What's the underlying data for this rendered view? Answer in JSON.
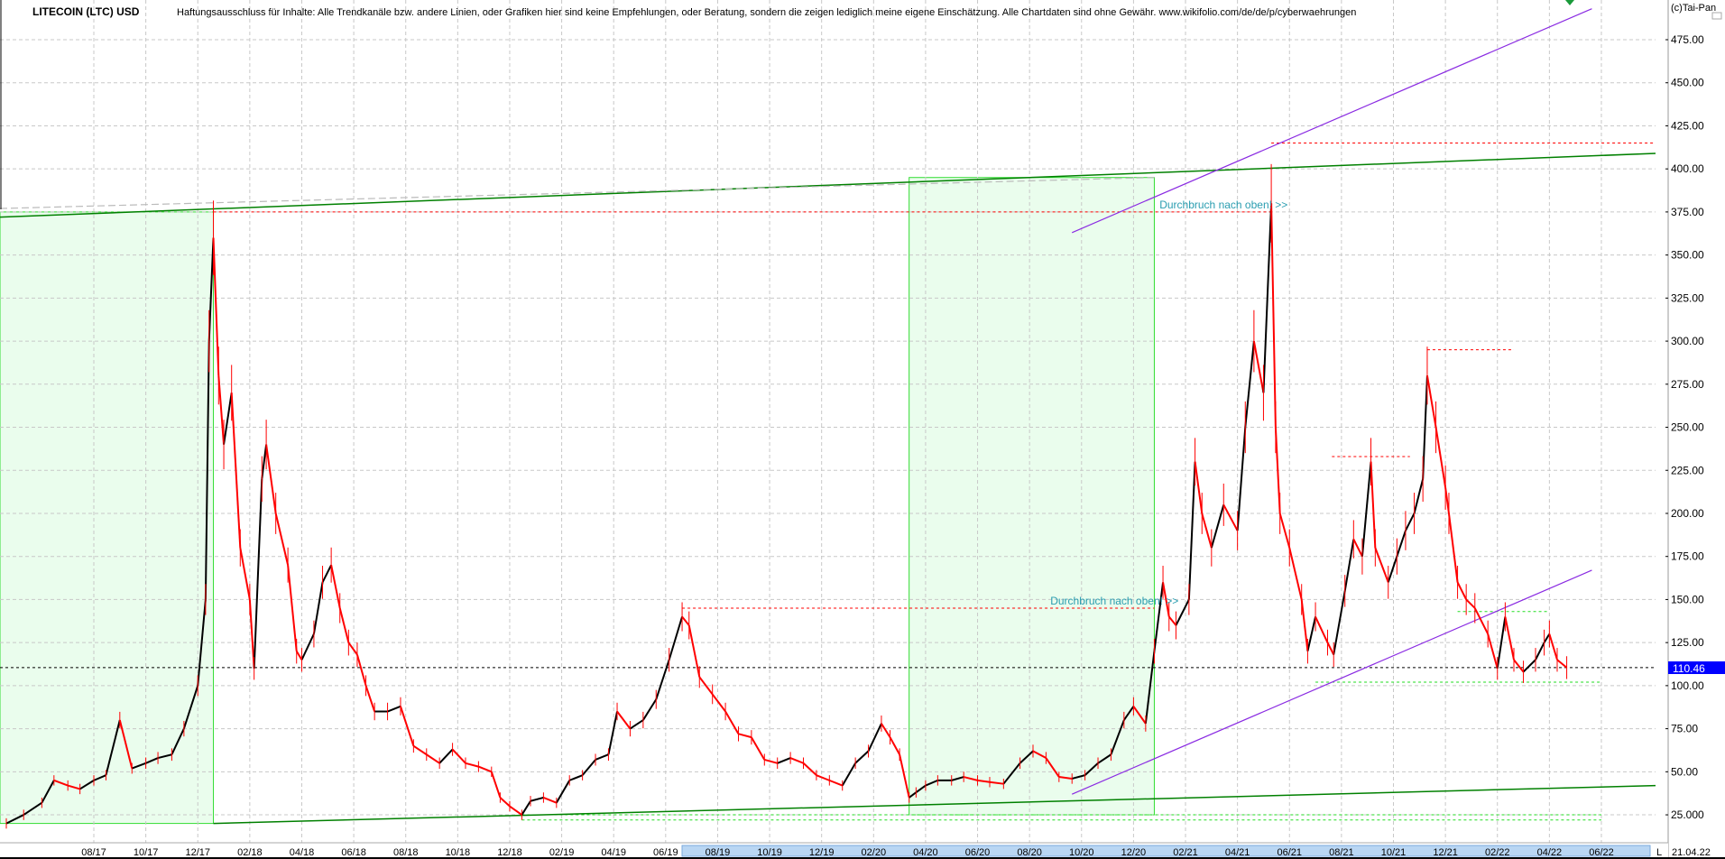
{
  "header": {
    "title": "LITECOIN (LTC) USD",
    "disclaimer": "Haftungsausschluss für Inhalte: Alle Trendkanäle bzw. andere Linien, oder Grafiken hier sind keine Empfehlungen, oder Beratung, sondern die zeigen lediglich meine eigene Einschätzung. Alle Chartdaten sind ohne Gewähr.  www.wikifolio.com/de/de/p/cyberwaehrungen",
    "copyright": "(c)Tai-Pan"
  },
  "footer": {
    "scroll_marker": "L",
    "last_date": "21.04.22"
  },
  "colors": {
    "up": "#000000",
    "down": "#ff0000",
    "price_badge": "#0000ff",
    "zone_fill": "#eafded",
    "zone_border": "#33dd33",
    "trend_green": "#008000",
    "channel_purple": "#8a2be2",
    "annotation": "#2a9db0",
    "scrollbar": "#b9d6f3"
  },
  "chart_data": {
    "type": "line",
    "title": "LITECOIN (LTC) USD",
    "xlabel": "",
    "ylabel": "",
    "ylim": [
      0,
      490
    ],
    "grid": true,
    "current_price": {
      "label": "110.46",
      "value": 110.46
    },
    "x_ticks": [
      "08/17",
      "10/17",
      "12/17",
      "02/18",
      "04/18",
      "06/18",
      "08/18",
      "10/18",
      "12/18",
      "02/19",
      "04/19",
      "06/19",
      "08/19",
      "10/19",
      "12/19",
      "02/20",
      "04/20",
      "06/20",
      "08/20",
      "10/20",
      "12/20",
      "02/21",
      "04/21",
      "06/21",
      "08/21",
      "10/21",
      "12/21",
      "02/22",
      "04/22",
      "06/22"
    ],
    "y_ticks": [
      {
        "value": 475,
        "label": "475.00"
      },
      {
        "value": 450,
        "label": "450.00"
      },
      {
        "value": 425,
        "label": "425.00"
      },
      {
        "value": 400,
        "label": "400.00"
      },
      {
        "value": 375,
        "label": "375.00"
      },
      {
        "value": 350,
        "label": "350.00"
      },
      {
        "value": 325,
        "label": "325.00"
      },
      {
        "value": 300,
        "label": "300.00"
      },
      {
        "value": 275,
        "label": "275.00"
      },
      {
        "value": 250,
        "label": "250.00"
      },
      {
        "value": 225,
        "label": "225.00"
      },
      {
        "value": 200,
        "label": "200.00"
      },
      {
        "value": 175,
        "label": "175.00"
      },
      {
        "value": 150,
        "label": "150.00"
      },
      {
        "value": 125,
        "label": "125.00"
      },
      {
        "value": 100,
        "label": "100.00"
      },
      {
        "value": 75,
        "label": "75.00"
      },
      {
        "value": 50,
        "label": "50.00"
      },
      {
        "value": 25,
        "label": "25.000"
      }
    ],
    "series": [
      {
        "points": [
          [
            "2017-04-20",
            20
          ],
          [
            "2017-05-10",
            25
          ],
          [
            "2017-06-01",
            32
          ],
          [
            "2017-06-15",
            45
          ],
          [
            "2017-07-01",
            42
          ],
          [
            "2017-07-15",
            40
          ],
          [
            "2017-08-01",
            45
          ],
          [
            "2017-08-15",
            48
          ],
          [
            "2017-09-01",
            80
          ],
          [
            "2017-09-15",
            52
          ],
          [
            "2017-10-01",
            55
          ],
          [
            "2017-10-15",
            58
          ],
          [
            "2017-11-01",
            60
          ],
          [
            "2017-11-15",
            75
          ],
          [
            "2017-12-01",
            100
          ],
          [
            "2017-12-10",
            150
          ],
          [
            "2017-12-14",
            300
          ],
          [
            "2017-12-19",
            360
          ],
          [
            "2017-12-25",
            280
          ],
          [
            "2018-01-01",
            240
          ],
          [
            "2018-01-10",
            270
          ],
          [
            "2018-01-20",
            180
          ],
          [
            "2018-02-01",
            150
          ],
          [
            "2018-02-06",
            110
          ],
          [
            "2018-02-15",
            220
          ],
          [
            "2018-02-20",
            240
          ],
          [
            "2018-03-01",
            200
          ],
          [
            "2018-03-15",
            170
          ],
          [
            "2018-03-25",
            120
          ],
          [
            "2018-04-01",
            115
          ],
          [
            "2018-04-15",
            130
          ],
          [
            "2018-04-25",
            160
          ],
          [
            "2018-05-05",
            170
          ],
          [
            "2018-05-15",
            145
          ],
          [
            "2018-05-25",
            125
          ],
          [
            "2018-06-05",
            118
          ],
          [
            "2018-06-15",
            100
          ],
          [
            "2018-06-25",
            85
          ],
          [
            "2018-07-10",
            85
          ],
          [
            "2018-07-25",
            88
          ],
          [
            "2018-08-10",
            65
          ],
          [
            "2018-08-25",
            60
          ],
          [
            "2018-09-10",
            55
          ],
          [
            "2018-09-25",
            63
          ],
          [
            "2018-10-10",
            55
          ],
          [
            "2018-10-25",
            53
          ],
          [
            "2018-11-10",
            50
          ],
          [
            "2018-11-20",
            35
          ],
          [
            "2018-12-01",
            30
          ],
          [
            "2018-12-15",
            25
          ],
          [
            "2018-12-25",
            33
          ],
          [
            "2019-01-10",
            35
          ],
          [
            "2019-01-25",
            32
          ],
          [
            "2019-02-10",
            45
          ],
          [
            "2019-02-25",
            48
          ],
          [
            "2019-03-10",
            57
          ],
          [
            "2019-03-25",
            60
          ],
          [
            "2019-04-05",
            85
          ],
          [
            "2019-04-20",
            75
          ],
          [
            "2019-05-05",
            80
          ],
          [
            "2019-05-20",
            92
          ],
          [
            "2019-06-05",
            115
          ],
          [
            "2019-06-20",
            140
          ],
          [
            "2019-06-28",
            135
          ],
          [
            "2019-07-10",
            105
          ],
          [
            "2019-07-25",
            95
          ],
          [
            "2019-08-10",
            85
          ],
          [
            "2019-08-25",
            72
          ],
          [
            "2019-09-10",
            70
          ],
          [
            "2019-09-25",
            57
          ],
          [
            "2019-10-10",
            55
          ],
          [
            "2019-10-25",
            58
          ],
          [
            "2019-11-10",
            55
          ],
          [
            "2019-11-25",
            48
          ],
          [
            "2019-12-10",
            45
          ],
          [
            "2019-12-25",
            42
          ],
          [
            "2020-01-10",
            55
          ],
          [
            "2020-01-25",
            62
          ],
          [
            "2020-02-10",
            78
          ],
          [
            "2020-02-20",
            70
          ],
          [
            "2020-03-01",
            60
          ],
          [
            "2020-03-12",
            35
          ],
          [
            "2020-03-20",
            38
          ],
          [
            "2020-04-01",
            42
          ],
          [
            "2020-04-15",
            45
          ],
          [
            "2020-05-01",
            45
          ],
          [
            "2020-05-15",
            47
          ],
          [
            "2020-06-01",
            45
          ],
          [
            "2020-06-15",
            44
          ],
          [
            "2020-07-01",
            43
          ],
          [
            "2020-07-20",
            55
          ],
          [
            "2020-08-05",
            62
          ],
          [
            "2020-08-20",
            58
          ],
          [
            "2020-09-05",
            47
          ],
          [
            "2020-09-20",
            46
          ],
          [
            "2020-10-05",
            48
          ],
          [
            "2020-10-20",
            55
          ],
          [
            "2020-11-05",
            60
          ],
          [
            "2020-11-20",
            80
          ],
          [
            "2020-12-01",
            88
          ],
          [
            "2020-12-15",
            78
          ],
          [
            "2020-12-25",
            120
          ],
          [
            "2021-01-05",
            160
          ],
          [
            "2021-01-12",
            140
          ],
          [
            "2021-01-20",
            135
          ],
          [
            "2021-02-05",
            150
          ],
          [
            "2021-02-12",
            230
          ],
          [
            "2021-02-20",
            200
          ],
          [
            "2021-03-01",
            180
          ],
          [
            "2021-03-15",
            205
          ],
          [
            "2021-04-01",
            190
          ],
          [
            "2021-04-10",
            250
          ],
          [
            "2021-04-20",
            300
          ],
          [
            "2021-05-01",
            270
          ],
          [
            "2021-05-10",
            380
          ],
          [
            "2021-05-15",
            250
          ],
          [
            "2021-05-20",
            200
          ],
          [
            "2021-06-01",
            180
          ],
          [
            "2021-06-15",
            150
          ],
          [
            "2021-06-22",
            120
          ],
          [
            "2021-07-01",
            140
          ],
          [
            "2021-07-15",
            125
          ],
          [
            "2021-07-22",
            118
          ],
          [
            "2021-08-05",
            155
          ],
          [
            "2021-08-15",
            185
          ],
          [
            "2021-08-25",
            175
          ],
          [
            "2021-09-05",
            230
          ],
          [
            "2021-09-10",
            180
          ],
          [
            "2021-09-25",
            160
          ],
          [
            "2021-10-05",
            175
          ],
          [
            "2021-10-15",
            190
          ],
          [
            "2021-10-25",
            200
          ],
          [
            "2021-11-05",
            220
          ],
          [
            "2021-11-10",
            280
          ],
          [
            "2021-11-20",
            250
          ],
          [
            "2021-12-01",
            215
          ],
          [
            "2021-12-05",
            200
          ],
          [
            "2021-12-15",
            160
          ],
          [
            "2021-12-25",
            150
          ],
          [
            "2022-01-05",
            145
          ],
          [
            "2022-01-20",
            130
          ],
          [
            "2022-02-01",
            110
          ],
          [
            "2022-02-10",
            140
          ],
          [
            "2022-02-20",
            115
          ],
          [
            "2022-03-01",
            108
          ],
          [
            "2022-03-15",
            115
          ],
          [
            "2022-03-25",
            125
          ],
          [
            "2022-04-01",
            130
          ],
          [
            "2022-04-10",
            115
          ],
          [
            "2022-04-21",
            110.46
          ]
        ]
      }
    ],
    "annotations": {
      "zones": [
        {
          "from": "2017-04-01",
          "to": "2017-12-19",
          "low": 20,
          "high": 375
        },
        {
          "from": "2020-03-12",
          "to": "2020-12-25",
          "low": 25,
          "high": 395
        }
      ],
      "trend_lines": [
        {
          "kind": "green",
          "from": [
            "2017-04-01",
            372
          ],
          "to": [
            "2022-08-20",
            409
          ]
        },
        {
          "kind": "green",
          "from": [
            "2017-12-19",
            20
          ],
          "to": [
            "2022-08-20",
            42
          ]
        },
        {
          "kind": "purple",
          "from": [
            "2020-09-20",
            363
          ],
          "to": [
            "2022-05-20",
            493
          ]
        },
        {
          "kind": "purple",
          "from": [
            "2020-09-20",
            37
          ],
          "to": [
            "2022-05-20",
            167
          ]
        },
        {
          "kind": "gray",
          "from": [
            "2017-04-01",
            377
          ],
          "to": [
            "2020-12-25",
            395
          ]
        }
      ],
      "levels": [
        {
          "color": "red",
          "value": 375,
          "from": "2017-12-19",
          "to": "2021-05-10"
        },
        {
          "color": "red",
          "value": 415,
          "from": "2021-05-10",
          "to": "2022-08-20"
        },
        {
          "color": "red",
          "value": 145,
          "from": "2019-06-20",
          "to": "2020-12-25"
        },
        {
          "color": "red",
          "value": 295,
          "from": "2021-11-10",
          "to": "2022-02-20"
        },
        {
          "color": "red",
          "value": 233,
          "from": "2021-07-20",
          "to": "2021-10-20"
        },
        {
          "color": "green",
          "value": 143,
          "from": "2021-12-15",
          "to": "2022-04-01"
        },
        {
          "color": "green",
          "value": 102,
          "from": "2021-07-01",
          "to": "2022-06-01"
        },
        {
          "color": "green",
          "value": 25,
          "from": "2018-12-15",
          "to": "2022-06-01"
        },
        {
          "color": "green",
          "value": 22,
          "from": "2018-12-15",
          "to": "2022-06-01"
        }
      ],
      "labels": [
        {
          "text": "Durchbruch nach oben! >>",
          "date": "2021-01-01",
          "value": 375
        },
        {
          "text": "Durchbruch nach oben! >>",
          "date": "2020-08-25",
          "value": 145
        }
      ]
    }
  }
}
